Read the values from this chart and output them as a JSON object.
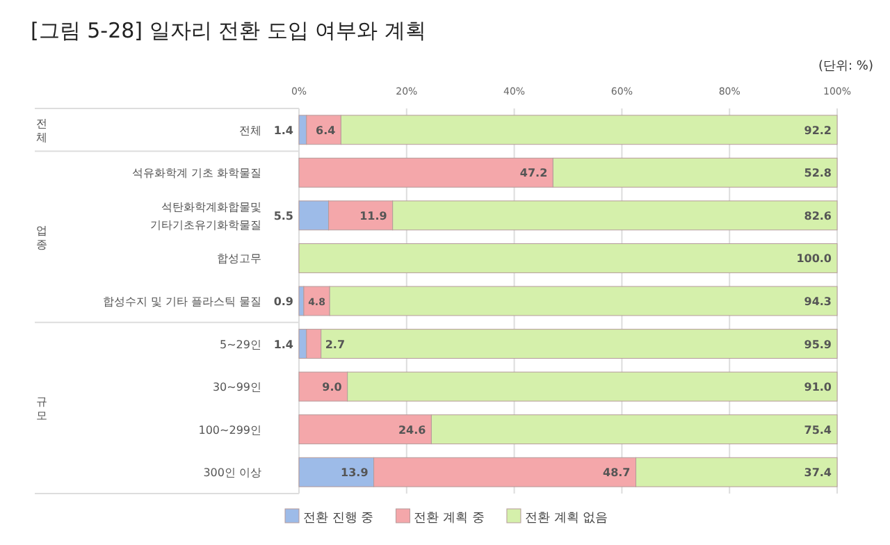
{
  "chart_data": {
    "type": "bar",
    "orientation": "horizontal",
    "stacked": true,
    "title": "[그림 5-28] 일자리 전환 도입 여부와 계획",
    "annotations": [
      "(단위: %)",
      "전체",
      "업종",
      "규모"
    ],
    "categories": [
      "전체",
      "석유화학계 기초 화학물질",
      "석탄화학계화합물및\n기타기초유기화학물질",
      "합성고무",
      "합성수지 및 기타 플라스틱 물질",
      "5~29인",
      "30~99인",
      "100~299인",
      "300인 이상"
    ],
    "series": [
      {
        "name": "전환 진행 중",
        "color": "#9dbbe8",
        "values": [
          1.4,
          0,
          5.5,
          0,
          0.9,
          1.4,
          0,
          0,
          13.9
        ],
        "value_labels": [
          "1.4",
          null,
          "5.5",
          null,
          "0.9",
          "1.4",
          null,
          null,
          "13.9"
        ]
      },
      {
        "name": "전환 계획 중",
        "color": "#f4a7aa",
        "values": [
          6.4,
          47.2,
          11.9,
          0,
          4.8,
          2.7,
          9.0,
          24.6,
          48.7
        ],
        "value_labels": [
          "6.4",
          "47.2",
          "11.9",
          null,
          "4.8",
          "2.7",
          "9.0",
          "24.6",
          "48.7"
        ]
      },
      {
        "name": "전환 계획 없음",
        "color": "#d5f0ab",
        "values": [
          92.2,
          52.8,
          82.6,
          100.0,
          94.3,
          95.9,
          91.0,
          75.4,
          37.4
        ],
        "value_labels": [
          "92.2",
          "52.8",
          "82.6",
          "100.0",
          "94.3",
          "95.9",
          "91.0",
          "75.4",
          "37.4"
        ]
      }
    ],
    "xlim": [
      0,
      100
    ],
    "xticks": [
      {
        "value": 0,
        "label": "0%"
      },
      {
        "value": 20,
        "label": "20%"
      },
      {
        "value": 40,
        "label": "40%"
      },
      {
        "value": 60,
        "label": "60%"
      },
      {
        "value": 80,
        "label": "80%"
      },
      {
        "value": 100,
        "label": "100%"
      }
    ],
    "grid": "x",
    "legend": "bottom"
  }
}
